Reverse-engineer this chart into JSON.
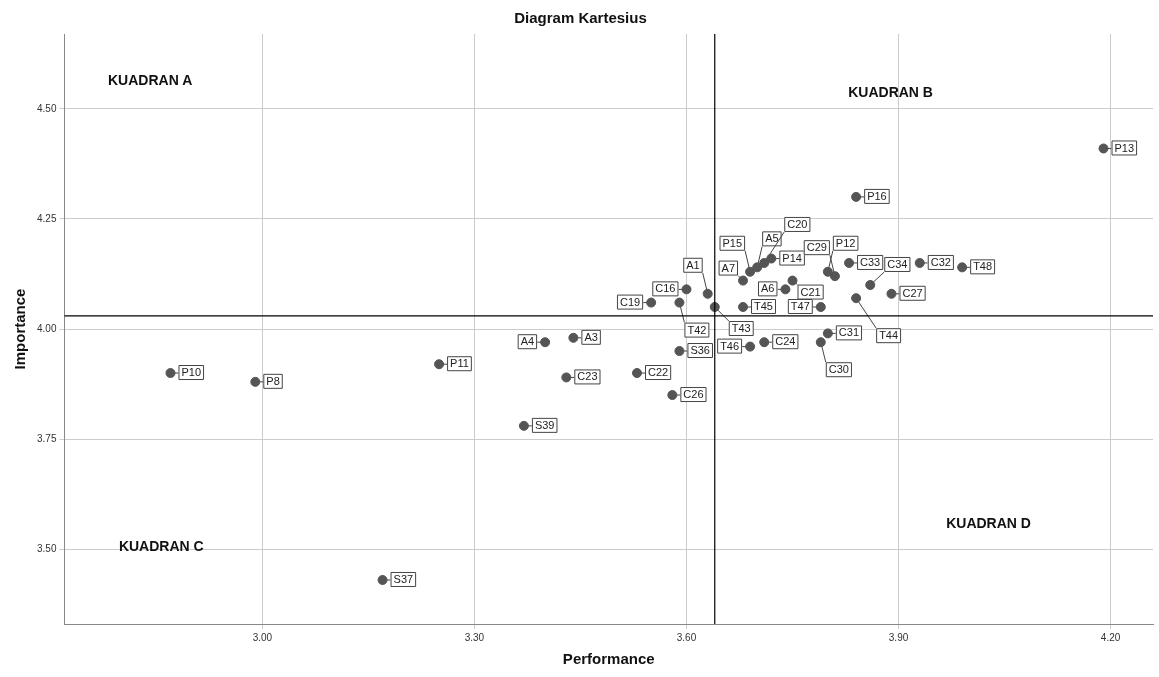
{
  "chart_data": {
    "type": "scatter",
    "title": "Diagram Kartesius",
    "xlabel": "Performance",
    "ylabel": "Importance",
    "xlim": [
      2.72,
      4.26
    ],
    "ylim": [
      3.33,
      4.67
    ],
    "xticks": [
      {
        "value": 3.0,
        "label": "3.00"
      },
      {
        "value": 3.3,
        "label": "3.30"
      },
      {
        "value": 3.6,
        "label": "3.60"
      },
      {
        "value": 3.9,
        "label": "3.90"
      },
      {
        "value": 4.2,
        "label": "4.20"
      }
    ],
    "yticks": [
      {
        "value": 3.5,
        "label": "3.50"
      },
      {
        "value": 3.75,
        "label": "3.75"
      },
      {
        "value": 4.0,
        "label": "4.00"
      },
      {
        "value": 4.25,
        "label": "4.25"
      },
      {
        "value": 4.5,
        "label": "4.50"
      }
    ],
    "grid": true,
    "legend": false,
    "marker": "circle",
    "ref_lines": [
      {
        "axis": "x",
        "value": 3.64,
        "color": "#000000"
      },
      {
        "axis": "y",
        "value": 4.03,
        "color": "#000000"
      }
    ],
    "series": [
      {
        "color": "#555555",
        "x": [
          2.99,
          2.87,
          3.25,
          3.8,
          4.19,
          3.72,
          3.69,
          3.84,
          3.63,
          3.44,
          3.4,
          3.7,
          3.74,
          3.68,
          3.6,
          3.55,
          3.71,
          3.75,
          3.53,
          3.43,
          3.71,
          3.58,
          3.89,
          3.81,
          3.79,
          3.8,
          3.93,
          3.83,
          3.86,
          3.59,
          3.17,
          3.37,
          3.59,
          3.64,
          3.84,
          3.68,
          3.69,
          3.79,
          3.99
        ],
        "values": [
          3.88,
          3.9,
          3.92,
          4.13,
          4.41,
          4.16,
          4.13,
          4.3,
          4.08,
          3.98,
          3.97,
          4.14,
          4.09,
          4.11,
          4.09,
          4.06,
          4.15,
          4.11,
          3.9,
          3.89,
          3.97,
          3.85,
          4.08,
          4.12,
          3.97,
          3.99,
          4.15,
          4.15,
          4.1,
          3.95,
          3.43,
          3.78,
          4.06,
          4.05,
          4.07,
          4.05,
          3.96,
          4.05,
          4.14
        ]
      }
    ],
    "annotations": [
      "KUADRAN A",
      "KUADRAN B",
      "KUADRAN C",
      "KUADRAN D",
      {
        "text": "P8",
        "x": 2.99,
        "y": 3.88
      },
      {
        "text": "P10",
        "x": 2.87,
        "y": 3.9
      },
      {
        "text": "P11",
        "x": 3.25,
        "y": 3.92
      },
      {
        "text": "P12",
        "x": 3.8,
        "y": 4.13
      },
      {
        "text": "P13",
        "x": 4.19,
        "y": 4.41
      },
      {
        "text": "P14",
        "x": 3.72,
        "y": 4.16
      },
      {
        "text": "P15",
        "x": 3.69,
        "y": 4.13
      },
      {
        "text": "P16",
        "x": 3.84,
        "y": 4.3
      },
      {
        "text": "A1",
        "x": 3.63,
        "y": 4.08
      },
      {
        "text": "A3",
        "x": 3.44,
        "y": 3.98
      },
      {
        "text": "A4",
        "x": 3.4,
        "y": 3.97
      },
      {
        "text": "A5",
        "x": 3.7,
        "y": 4.14
      },
      {
        "text": "A6",
        "x": 3.74,
        "y": 4.09
      },
      {
        "text": "A7",
        "x": 3.68,
        "y": 4.11
      },
      {
        "text": "C16",
        "x": 3.6,
        "y": 4.09
      },
      {
        "text": "C19",
        "x": 3.55,
        "y": 4.06
      },
      {
        "text": "C20",
        "x": 3.71,
        "y": 4.15
      },
      {
        "text": "C21",
        "x": 3.75,
        "y": 4.11
      },
      {
        "text": "C22",
        "x": 3.53,
        "y": 3.9
      },
      {
        "text": "C23",
        "x": 3.43,
        "y": 3.89
      },
      {
        "text": "C24",
        "x": 3.71,
        "y": 3.97
      },
      {
        "text": "C26",
        "x": 3.58,
        "y": 3.85
      },
      {
        "text": "C27",
        "x": 3.89,
        "y": 4.08
      },
      {
        "text": "C29",
        "x": 3.81,
        "y": 4.12
      },
      {
        "text": "C30",
        "x": 3.79,
        "y": 3.97
      },
      {
        "text": "C31",
        "x": 3.8,
        "y": 3.99
      },
      {
        "text": "C32",
        "x": 3.93,
        "y": 4.15
      },
      {
        "text": "C33",
        "x": 3.83,
        "y": 4.15
      },
      {
        "text": "C34",
        "x": 3.86,
        "y": 4.1
      },
      {
        "text": "S36",
        "x": 3.59,
        "y": 3.95
      },
      {
        "text": "S37",
        "x": 3.17,
        "y": 3.43
      },
      {
        "text": "S39",
        "x": 3.37,
        "y": 3.78
      },
      {
        "text": "T42",
        "x": 3.59,
        "y": 4.06
      },
      {
        "text": "T43",
        "x": 3.64,
        "y": 4.05
      },
      {
        "text": "T44",
        "x": 3.84,
        "y": 4.07
      },
      {
        "text": "T45",
        "x": 3.68,
        "y": 4.05
      },
      {
        "text": "T46",
        "x": 3.69,
        "y": 3.96
      },
      {
        "text": "T47",
        "x": 3.79,
        "y": 4.05
      },
      {
        "text": "T48",
        "x": 3.99,
        "y": 4.14
      }
    ]
  }
}
